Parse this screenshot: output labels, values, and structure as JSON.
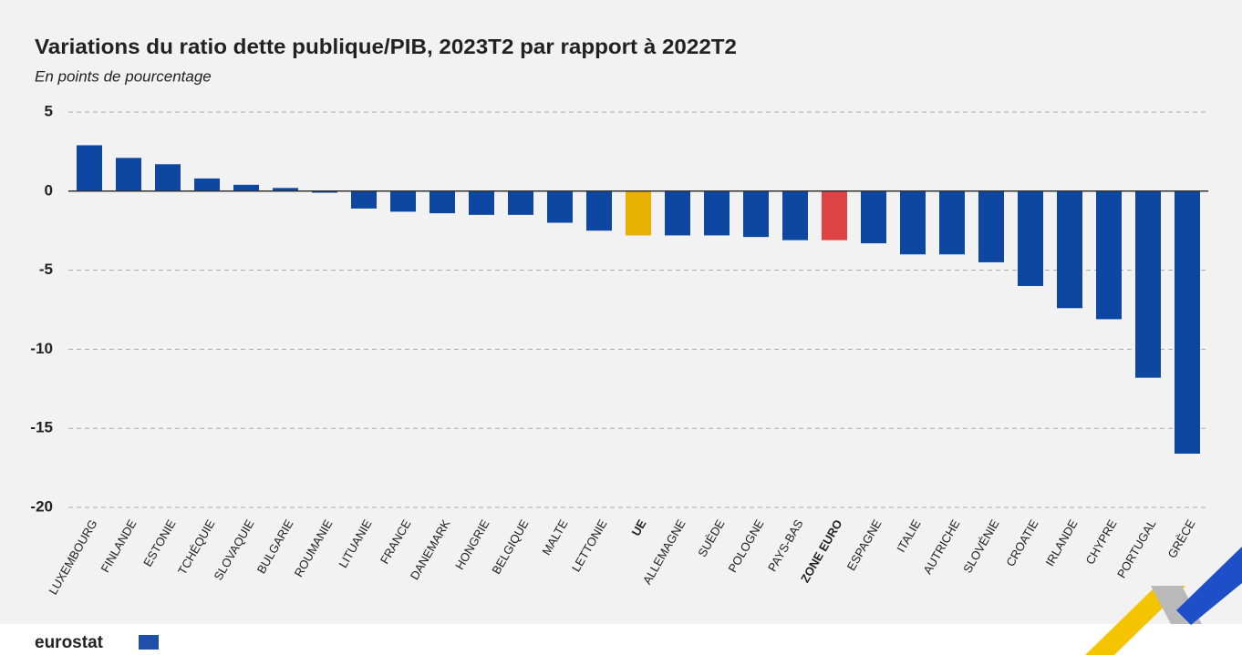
{
  "chart_data": {
    "type": "bar",
    "title": "Variations du ratio dette publique/PIB, 2023T2 par rapport à 2022T2",
    "subtitle": "En points de pourcentage",
    "categories": [
      "LUXEMBOURG",
      "FINLANDE",
      "ESTONIE",
      "TCHÉQUIE",
      "SLOVAQUIE",
      "BULGARIE",
      "ROUMANIE",
      "LITUANIE",
      "FRANCE",
      "DANEMARK",
      "HONGRIE",
      "BELGIQUE",
      "MALTE",
      "LETTONIE",
      "UE",
      "ALLEMAGNE",
      "SUÈDE",
      "POLOGNE",
      "PAYS-BAS",
      "ZONE EURO",
      "ESPAGNE",
      "ITALIE",
      "AUTRICHE",
      "SLOVÉNIE",
      "CROATIE",
      "IRLANDE",
      "CHYPRE",
      "PORTUGAL",
      "GRÈCE"
    ],
    "values": [
      2.9,
      2.1,
      1.7,
      0.8,
      0.4,
      0.2,
      -0.1,
      -1.1,
      -1.3,
      -1.4,
      -1.5,
      -1.5,
      -2.0,
      -2.5,
      -2.8,
      -2.8,
      -2.8,
      -2.9,
      -3.1,
      -3.1,
      -3.3,
      -4.0,
      -4.0,
      -4.5,
      -6.0,
      -7.4,
      -8.1,
      -11.8,
      -16.6
    ],
    "color": "#0e47a1",
    "colors": [
      "#0e47a1",
      "#0e47a1",
      "#0e47a1",
      "#0e47a1",
      "#0e47a1",
      "#0e47a1",
      "#0e47a1",
      "#0e47a1",
      "#0e47a1",
      "#0e47a1",
      "#0e47a1",
      "#0e47a1",
      "#0e47a1",
      "#0e47a1",
      "#e8b000",
      "#0e47a1",
      "#0e47a1",
      "#0e47a1",
      "#0e47a1",
      "#e04343",
      "#0e47a1",
      "#0e47a1",
      "#0e47a1",
      "#0e47a1",
      "#0e47a1",
      "#0e47a1",
      "#0e47a1",
      "#0e47a1",
      "#0e47a1"
    ],
    "ylim": [
      -20,
      5
    ],
    "yticks": [
      5,
      0,
      -5,
      -10,
      -15,
      -20
    ],
    "grid": true
  },
  "footer": {
    "logo": "eurostat"
  }
}
